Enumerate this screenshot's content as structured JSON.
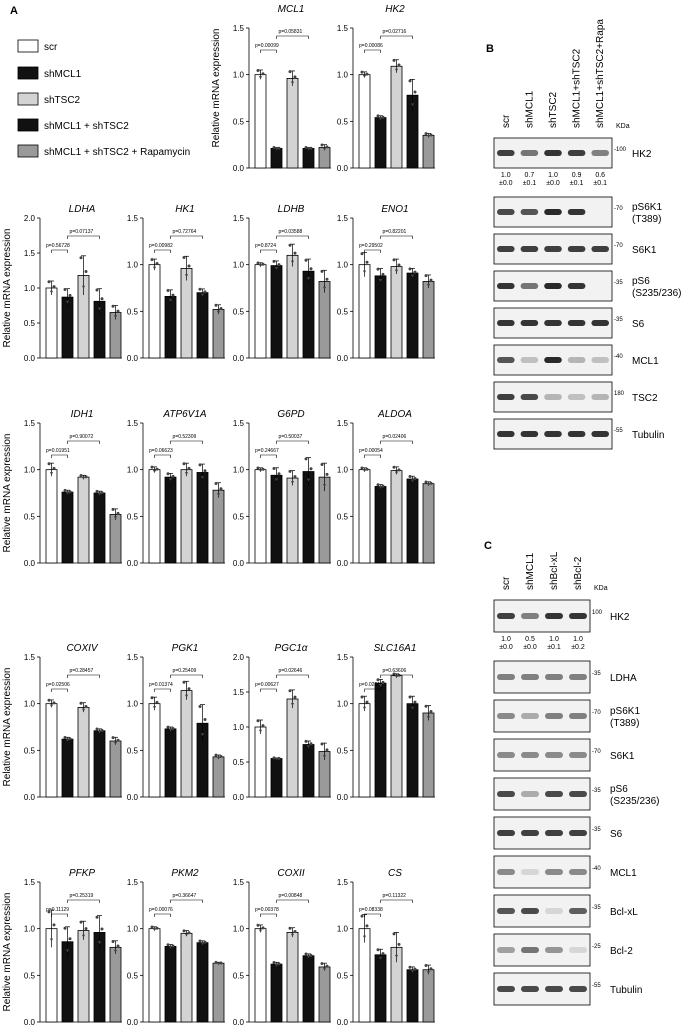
{
  "panels": {
    "A": "A",
    "B": "B",
    "C": "C"
  },
  "ylabel": "Relative mRNA expression",
  "legend": {
    "items": [
      {
        "label": "scr",
        "color": "#ffffff"
      },
      {
        "label": "shMCL1",
        "color": "#111111"
      },
      {
        "label": "shTSC2",
        "color": "#d3d3d3"
      },
      {
        "label": "shMCL1 + shTSC2",
        "color": "#111111"
      },
      {
        "label": "shMCL1 + shTSC2 + Rapamycin",
        "color": "#9a9a9a"
      }
    ]
  },
  "chart_data": [
    {
      "type": "bar",
      "title": "MCL1",
      "categories": [
        "scr",
        "shMCL1",
        "shTSC2",
        "shMCL1 + shTSC2",
        "shMCL1 + shTSC2 + Rapamycin"
      ],
      "values": [
        1.0,
        0.21,
        0.96,
        0.21,
        0.22
      ],
      "errors": [
        0.05,
        0.01,
        0.08,
        0.01,
        0.03
      ],
      "ylim": [
        0,
        1.5
      ],
      "yticks": [
        "0.0",
        "0.5",
        "1.0",
        "1.5"
      ],
      "pvalues": [
        "p=0.00099",
        "p=0.05831"
      ]
    },
    {
      "type": "bar",
      "title": "HK2",
      "categories": [
        "scr",
        "shMCL1",
        "shTSC2",
        "shMCL1 + shTSC2",
        "shMCL1 + shTSC2 + Rapamycin"
      ],
      "values": [
        1.0,
        0.54,
        1.09,
        0.78,
        0.35
      ],
      "errors": [
        0.03,
        0.02,
        0.07,
        0.17,
        0.02
      ],
      "ylim": [
        0,
        1.5
      ],
      "yticks": [
        "0.0",
        "0.5",
        "1.0",
        "1.5"
      ],
      "pvalues": [
        "p=0.00086",
        "p=0.02716"
      ]
    },
    {
      "type": "bar",
      "title": "LDHA",
      "categories": [
        "scr",
        "shMCL1",
        "shTSC2",
        "shMCL1 + shTSC2",
        "shMCL1 + shTSC2 + Rapamycin"
      ],
      "values": [
        1.0,
        0.87,
        1.18,
        0.81,
        0.65
      ],
      "errors": [
        0.1,
        0.12,
        0.28,
        0.18,
        0.1
      ],
      "ylim": [
        0,
        2.0
      ],
      "yticks": [
        "0.0",
        "0.5",
        "1.0",
        "1.5",
        "2.0"
      ],
      "pvalues": [
        "p=0.56728",
        "p=0.07137"
      ]
    },
    {
      "type": "bar",
      "title": "HK1",
      "categories": [
        "scr",
        "shMCL1",
        "shTSC2",
        "shMCL1 + shTSC2",
        "shMCL1 + shTSC2 + Rapamycin"
      ],
      "values": [
        1.0,
        0.66,
        0.96,
        0.7,
        0.52
      ],
      "errors": [
        0.06,
        0.07,
        0.13,
        0.04,
        0.05
      ],
      "ylim": [
        0,
        1.5
      ],
      "yticks": [
        "0.0",
        "0.5",
        "1.0",
        "1.5"
      ],
      "pvalues": [
        "p=0.00982",
        "p=0.72764"
      ]
    },
    {
      "type": "bar",
      "title": "LDHB",
      "categories": [
        "scr",
        "shMCL1",
        "shTSC2",
        "shMCL1 + shTSC2",
        "shMCL1 + shTSC2 + Rapamycin"
      ],
      "values": [
        1.0,
        0.99,
        1.1,
        0.93,
        0.82
      ],
      "errors": [
        0.02,
        0.05,
        0.12,
        0.13,
        0.12
      ],
      "ylim": [
        0,
        1.5
      ],
      "yticks": [
        "0.0",
        "0.5",
        "1.0",
        "1.5"
      ],
      "pvalues": [
        "p=0.8724",
        "p=0.03588"
      ]
    },
    {
      "type": "bar",
      "title": "ENO1",
      "categories": [
        "scr",
        "shMCL1",
        "shTSC2",
        "shMCL1 + shTSC2",
        "shMCL1 + shTSC2 + Rapamycin"
      ],
      "values": [
        1.0,
        0.88,
        0.98,
        0.91,
        0.82
      ],
      "errors": [
        0.13,
        0.08,
        0.08,
        0.05,
        0.07
      ],
      "ylim": [
        0,
        1.5
      ],
      "yticks": [
        "0.0",
        "0.5",
        "1.0",
        "1.5"
      ],
      "pvalues": [
        "p=0.29502",
        "p=0.82201"
      ]
    },
    {
      "type": "bar",
      "title": "IDH1",
      "categories": [
        "scr",
        "shMCL1",
        "shTSC2",
        "shMCL1 + shTSC2",
        "shMCL1 + shTSC2 + Rapamycin"
      ],
      "values": [
        1.0,
        0.76,
        0.92,
        0.75,
        0.52
      ],
      "errors": [
        0.07,
        0.02,
        0.02,
        0.02,
        0.06
      ],
      "ylim": [
        0,
        1.5
      ],
      "yticks": [
        "0.0",
        "0.5",
        "1.0",
        "1.5"
      ],
      "pvalues": [
        "p=0.01951",
        "p=0.90072"
      ]
    },
    {
      "type": "bar",
      "title": "ATP6V1A",
      "categories": [
        "scr",
        "shMCL1",
        "shTSC2",
        "shMCL1 + shTSC2",
        "shMCL1 + shTSC2 + Rapamycin"
      ],
      "values": [
        1.0,
        0.92,
        1.0,
        0.97,
        0.78
      ],
      "errors": [
        0.03,
        0.04,
        0.07,
        0.09,
        0.08
      ],
      "ylim": [
        0,
        1.5
      ],
      "yticks": [
        "0.0",
        "0.5",
        "1.0",
        "1.5"
      ],
      "pvalues": [
        "p=0.06623",
        "p=0.52309"
      ]
    },
    {
      "type": "bar",
      "title": "G6PD",
      "categories": [
        "scr",
        "shMCL1",
        "shTSC2",
        "shMCL1 + shTSC2",
        "shMCL1 + shTSC2 + Rapamycin"
      ],
      "values": [
        1.0,
        0.94,
        0.91,
        0.98,
        0.92
      ],
      "errors": [
        0.02,
        0.08,
        0.08,
        0.15,
        0.15
      ],
      "ylim": [
        0,
        1.5
      ],
      "yticks": [
        "0.0",
        "0.5",
        "1.0",
        "1.5"
      ],
      "pvalues": [
        "p=0.24667",
        "p=0.50037"
      ]
    },
    {
      "type": "bar",
      "title": "ALDOA",
      "categories": [
        "scr",
        "shMCL1",
        "shTSC2",
        "shMCL1 + shTSC2",
        "shMCL1 + shTSC2 + Rapamycin"
      ],
      "values": [
        1.0,
        0.82,
        0.99,
        0.9,
        0.85
      ],
      "errors": [
        0.02,
        0.02,
        0.04,
        0.03,
        0.02
      ],
      "ylim": [
        0,
        1.5
      ],
      "yticks": [
        "0.0",
        "0.5",
        "1.0",
        "1.5"
      ],
      "pvalues": [
        "p=0.00054",
        "p=0.02406"
      ]
    },
    {
      "type": "bar",
      "title": "COXIV",
      "categories": [
        "scr",
        "shMCL1",
        "shTSC2",
        "shMCL1 + shTSC2",
        "shMCL1 + shTSC2 + Rapamycin"
      ],
      "values": [
        1.0,
        0.62,
        0.96,
        0.71,
        0.6
      ],
      "errors": [
        0.04,
        0.02,
        0.05,
        0.02,
        0.04
      ],
      "ylim": [
        0,
        1.5
      ],
      "yticks": [
        "0.0",
        "0.5",
        "1.0",
        "1.5"
      ],
      "pvalues": [
        "p=0.02506",
        "p=0.28457"
      ]
    },
    {
      "type": "bar",
      "title": "PGK1",
      "categories": [
        "scr",
        "shMCL1",
        "shTSC2",
        "shMCL1 + shTSC2",
        "shMCL1 + shTSC2 + Rapamycin"
      ],
      "values": [
        1.0,
        0.73,
        1.14,
        0.79,
        0.43
      ],
      "errors": [
        0.07,
        0.02,
        0.1,
        0.2,
        0.02
      ],
      "ylim": [
        0,
        1.5
      ],
      "yticks": [
        "0.0",
        "0.5",
        "1.0",
        "1.5"
      ],
      "pvalues": [
        "p=0.01374",
        "p=0.25409"
      ]
    },
    {
      "type": "bar",
      "title": "PGC1α",
      "categories": [
        "scr",
        "shMCL1",
        "shTSC2",
        "shMCL1 + shTSC2",
        "shMCL1 + shTSC2 + Rapamycin"
      ],
      "values": [
        1.0,
        0.55,
        1.4,
        0.75,
        0.65
      ],
      "errors": [
        0.1,
        0.01,
        0.13,
        0.05,
        0.12
      ],
      "ylim": [
        0,
        2.0
      ],
      "yticks": [
        "0.0",
        "0.5",
        "1.0",
        "1.5",
        "2.0"
      ],
      "pvalues": [
        "p=0.00627",
        "p=0.02646"
      ]
    },
    {
      "type": "bar",
      "title": "SLC16A1",
      "categories": [
        "scr",
        "shMCL1",
        "shTSC2",
        "shMCL1 + shTSC2",
        "shMCL1 + shTSC2 + Rapamycin"
      ],
      "values": [
        1.0,
        1.22,
        1.3,
        1.0,
        0.9
      ],
      "errors": [
        0.08,
        0.04,
        0.02,
        0.08,
        0.08
      ],
      "ylim": [
        0,
        1.5
      ],
      "yticks": [
        "0.0",
        "0.5",
        "1.0",
        "1.5"
      ],
      "pvalues": [
        "p=0.0231",
        "p=0.63606"
      ]
    },
    {
      "type": "bar",
      "title": "PFKP",
      "categories": [
        "scr",
        "shMCL1",
        "shTSC2",
        "shMCL1 + shTSC2",
        "shMCL1 + shTSC2 + Rapamycin"
      ],
      "values": [
        1.0,
        0.86,
        0.98,
        0.96,
        0.8
      ],
      "errors": [
        0.2,
        0.16,
        0.1,
        0.18,
        0.07
      ],
      "ylim": [
        0,
        1.5
      ],
      "yticks": [
        "0.0",
        "0.5",
        "1.0",
        "1.5"
      ],
      "pvalues": [
        "p=0.11129",
        "p=0.25319"
      ]
    },
    {
      "type": "bar",
      "title": "PKM2",
      "categories": [
        "scr",
        "shMCL1",
        "shTSC2",
        "shMCL1 + shTSC2",
        "shMCL1 + shTSC2 + Rapamycin"
      ],
      "values": [
        1.0,
        0.81,
        0.95,
        0.85,
        0.63
      ],
      "errors": [
        0.02,
        0.02,
        0.03,
        0.02,
        0.01
      ],
      "ylim": [
        0,
        1.5
      ],
      "yticks": [
        "0.0",
        "0.5",
        "1.0",
        "1.5"
      ],
      "pvalues": [
        "p=0.00076",
        "p=0.36647"
      ]
    },
    {
      "type": "bar",
      "title": "COXII",
      "categories": [
        "scr",
        "shMCL1",
        "shTSC2",
        "shMCL1 + shTSC2",
        "shMCL1 + shTSC2 + Rapamycin"
      ],
      "values": [
        1.0,
        0.62,
        0.96,
        0.71,
        0.59
      ],
      "errors": [
        0.04,
        0.02,
        0.05,
        0.02,
        0.04
      ],
      "ylim": [
        0,
        1.5
      ],
      "yticks": [
        "0.0",
        "0.5",
        "1.0",
        "1.5"
      ],
      "pvalues": [
        "p=0.00378",
        "p=0.00848"
      ]
    },
    {
      "type": "bar",
      "title": "CS",
      "categories": [
        "scr",
        "shMCL1",
        "shTSC2",
        "shMCL1 + shTSC2",
        "shMCL1 + shTSC2 + Rapamycin"
      ],
      "values": [
        1.0,
        0.72,
        0.8,
        0.56,
        0.56
      ],
      "errors": [
        0.15,
        0.06,
        0.16,
        0.03,
        0.05
      ],
      "ylim": [
        0,
        1.5
      ],
      "yticks": [
        "0.0",
        "0.5",
        "1.0",
        "1.5"
      ],
      "pvalues": [
        "p=0.08338",
        "p=0.11322"
      ]
    }
  ],
  "blot_B": {
    "lanes": [
      "scr",
      "shMCL1",
      "shTSC2",
      "shMCL1+shTSC2",
      "shMCL1+shTSC2+Rapa"
    ],
    "kda_label": "KDa",
    "quant": [
      [
        "1.0",
        "±0.0"
      ],
      [
        "0.7",
        "±0.1"
      ],
      [
        "1.0",
        "±0.0"
      ],
      [
        "0.9",
        "±0.1"
      ],
      [
        "0.6",
        "±0.1"
      ]
    ],
    "rows": [
      {
        "label": [
          "HK2"
        ],
        "marker": "-100",
        "intensity": [
          0.8,
          0.55,
          0.85,
          0.8,
          0.5
        ]
      },
      {
        "label": [
          "pS6K1",
          "(T389)"
        ],
        "marker": "-70",
        "intensity": [
          0.75,
          0.7,
          0.9,
          0.85,
          0.0
        ]
      },
      {
        "label": [
          "S6K1"
        ],
        "marker": "-70",
        "intensity": [
          0.8,
          0.8,
          0.8,
          0.8,
          0.8
        ]
      },
      {
        "label": [
          "pS6",
          "(S235/236)"
        ],
        "marker": "-35",
        "intensity": [
          0.85,
          0.55,
          0.9,
          0.85,
          0.0
        ]
      },
      {
        "label": [
          "S6"
        ],
        "marker": "-35",
        "intensity": [
          0.85,
          0.85,
          0.85,
          0.85,
          0.85
        ]
      },
      {
        "label": [
          "MCL1"
        ],
        "marker": "-40",
        "intensity": [
          0.7,
          0.2,
          0.9,
          0.25,
          0.2
        ]
      },
      {
        "label": [
          "TSC2"
        ],
        "marker": "180",
        "intensity": [
          0.8,
          0.75,
          0.25,
          0.2,
          0.25
        ]
      },
      {
        "label": [
          "Tubulin"
        ],
        "marker": "-55",
        "intensity": [
          0.85,
          0.85,
          0.85,
          0.85,
          0.85
        ]
      }
    ]
  },
  "blot_C": {
    "lanes": [
      "scr",
      "shMCL1",
      "shBcl-xL",
      "shBcl-2"
    ],
    "kda_label": "KDa",
    "quant": [
      [
        "1.0",
        "±0.0"
      ],
      [
        "0.5",
        "±0.0"
      ],
      [
        "1.0",
        "±0.1"
      ],
      [
        "1.0",
        "±0.2"
      ]
    ],
    "rows": [
      {
        "label": [
          "HK2"
        ],
        "marker": "100",
        "intensity": [
          0.8,
          0.5,
          0.85,
          0.85
        ]
      },
      {
        "label": [
          "LDHA"
        ],
        "marker": "-35",
        "intensity": [
          0.5,
          0.5,
          0.5,
          0.5
        ]
      },
      {
        "label": [
          "pS6K1",
          "(T389)"
        ],
        "marker": "-70",
        "intensity": [
          0.45,
          0.3,
          0.5,
          0.5
        ]
      },
      {
        "label": [
          "S6K1"
        ],
        "marker": "-70",
        "intensity": [
          0.45,
          0.45,
          0.45,
          0.45
        ]
      },
      {
        "label": [
          "pS6",
          "(S235/236)"
        ],
        "marker": "-35",
        "intensity": [
          0.75,
          0.3,
          0.75,
          0.75
        ]
      },
      {
        "label": [
          "S6"
        ],
        "marker": "-35",
        "intensity": [
          0.8,
          0.8,
          0.8,
          0.8
        ]
      },
      {
        "label": [
          "MCL1"
        ],
        "marker": "-40",
        "intensity": [
          0.45,
          0.1,
          0.45,
          0.45
        ]
      },
      {
        "label": [
          "Bcl-xL"
        ],
        "marker": "-35",
        "intensity": [
          0.7,
          0.75,
          0.1,
          0.65
        ]
      },
      {
        "label": [
          "Bcl-2"
        ],
        "marker": "-25",
        "intensity": [
          0.35,
          0.55,
          0.4,
          0.1
        ]
      },
      {
        "label": [
          "Tubulin"
        ],
        "marker": "-55",
        "intensity": [
          0.75,
          0.75,
          0.75,
          0.75
        ]
      }
    ]
  }
}
